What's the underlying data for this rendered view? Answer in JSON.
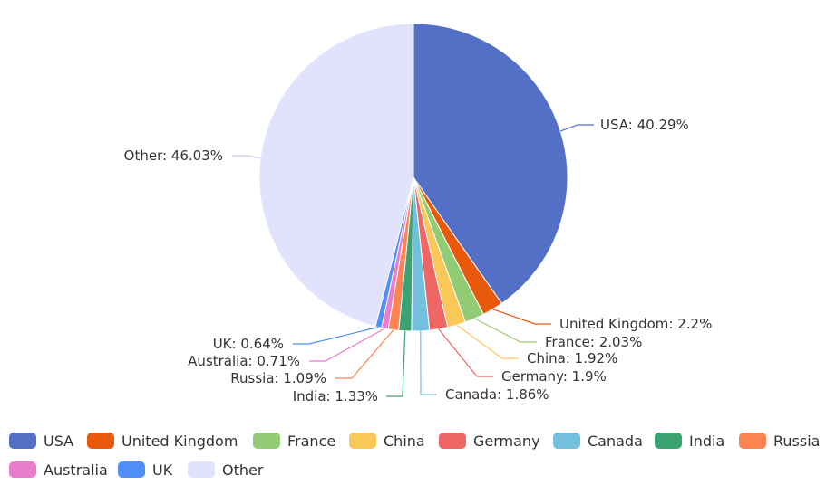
{
  "chart_data": {
    "type": "pie",
    "title": "",
    "slices": [
      {
        "name": "USA",
        "value": 40.29,
        "label": "USA: 40.29%",
        "color": "#5470c6"
      },
      {
        "name": "United Kingdom",
        "value": 2.2,
        "label": "United Kingdom: 2.2%",
        "color": "#e8590c"
      },
      {
        "name": "France",
        "value": 2.03,
        "label": "France: 2.03%",
        "color": "#91cc75"
      },
      {
        "name": "China",
        "value": 1.92,
        "label": "China: 1.92%",
        "color": "#fac858"
      },
      {
        "name": "Germany",
        "value": 1.9,
        "label": "Germany: 1.9%",
        "color": "#ee6666"
      },
      {
        "name": "Canada",
        "value": 1.86,
        "label": "Canada: 1.86%",
        "color": "#73c0de"
      },
      {
        "name": "India",
        "value": 1.33,
        "label": "India: 1.33%",
        "color": "#3ba272"
      },
      {
        "name": "Russia",
        "value": 1.09,
        "label": "Russia: 1.09%",
        "color": "#fc8452"
      },
      {
        "name": "Australia",
        "value": 0.71,
        "label": "Australia: 0.71%",
        "color": "#ea7ccc"
      },
      {
        "name": "UK",
        "value": 0.64,
        "label": "UK: 0.64%",
        "color": "#4f8ff7"
      },
      {
        "name": "Other",
        "value": 46.03,
        "label": "Other: 46.03%",
        "color": "#e0e3fb"
      }
    ],
    "legend_position": "bottom"
  }
}
